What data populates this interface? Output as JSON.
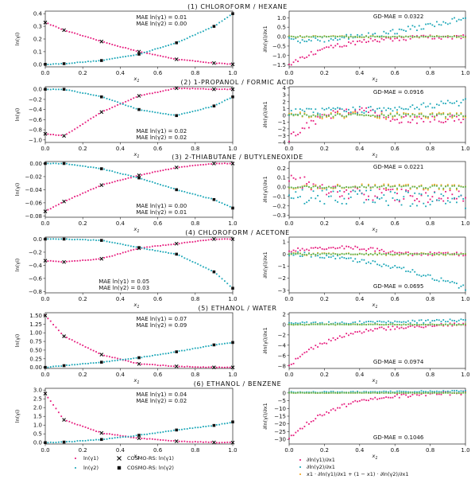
{
  "colors": {
    "pink": "#e6197c",
    "teal": "#1aa6b7",
    "orange": "#f3a31c",
    "green": "#5ab552",
    "marker": "#111111"
  },
  "legend": {
    "left": [
      {
        "label": "ln(γ1)",
        "marker": "pink-dot"
      },
      {
        "label": "ln(γ2)",
        "marker": "teal-dot"
      },
      {
        "label": "COSMO-RS: ln(γ1)",
        "marker": "black-x"
      },
      {
        "label": "COSMO-RS: ln(γ2)",
        "marker": "black-square"
      }
    ],
    "right": [
      {
        "label": "∂ln(γ1)/∂x1",
        "marker": "pink-dot"
      },
      {
        "label": "∂ln(γ2)/∂x1",
        "marker": "teal-dot"
      },
      {
        "label": "x1 · ∂ln(γ1)/∂x1 + (1 − x1) · ∂ln(γ2)/∂x1",
        "marker": "orange-dot"
      }
    ]
  },
  "chart_data": [
    {
      "type": "scatter",
      "title": "(1) CHLOROFORM / HEXANE",
      "xlabel": "x1",
      "ylabel": "ln(γi)",
      "xlim": [
        0,
        1
      ],
      "ylim": [
        -0.02,
        0.42
      ],
      "yticks": [
        0.0,
        0.1,
        0.2,
        0.3,
        0.4
      ],
      "ytick_labels": [
        "0.0",
        "0.1",
        "0.2",
        "0.3",
        "0.4"
      ],
      "xticks": [
        0,
        0.2,
        0.4,
        0.6,
        0.8,
        1.0
      ],
      "xtick_labels": [
        "0.0",
        "0.2",
        "0.4",
        "0.6",
        "0.8",
        "1.0"
      ],
      "ln1": {
        "a": 0.35,
        "b": 0.05,
        "c": -0.02
      },
      "ln2": {
        "a": 0.42,
        "b": -0.02,
        "c": 0
      },
      "cosmo_x": [
        0,
        0.1,
        0.3,
        0.5,
        0.7,
        0.9,
        1.0
      ],
      "cosmo_ln1": [
        0.33,
        0.27,
        0.18,
        0.1,
        0.04,
        0.01,
        0.0
      ],
      "cosmo_ln2": [
        0.0,
        0.005,
        0.03,
        0.08,
        0.17,
        0.3,
        0.4
      ],
      "annotation": [
        "MAE ln(γ1) = 0.01",
        "MAE ln(γ2) = 0.00"
      ],
      "ann_pos": "top",
      "right": {
        "title_ann": "GD-MAE = 0.0322",
        "ann_pos": "top",
        "ylim": [
          -1.6,
          1.35
        ],
        "yticks": [
          -1.5,
          -1.0,
          -0.5,
          0.0,
          0.5,
          1.0
        ],
        "ytick_labels": [
          "−1.5",
          "−1.0",
          "−0.5",
          "0.0",
          "0.5",
          "1.0"
        ],
        "d1": {
          "start": -1.5,
          "end": 0.0,
          "noise": 0.12
        },
        "d2": {
          "start": -0.2,
          "end": 1.0,
          "noise": 0.15
        },
        "gd": {
          "amp": 0.05
        }
      }
    },
    {
      "type": "scatter",
      "title": "(2) 1-PROPANOL / FORMIC ACID",
      "xlabel": "x1",
      "ylabel": "ln(γi)",
      "xlim": [
        0,
        1
      ],
      "ylim": [
        -1.05,
        0.05
      ],
      "yticks": [
        0.0,
        -0.2,
        -0.4,
        -0.6,
        -0.8,
        -1.0
      ],
      "ytick_labels": [
        "0.0",
        "−0.2",
        "−0.4",
        "−0.6",
        "−0.8",
        "−1.0"
      ],
      "xticks": [
        0,
        0.2,
        0.4,
        0.6,
        0.8,
        1.0
      ],
      "xtick_labels": [
        "0.0",
        "0.2",
        "0.4",
        "0.6",
        "0.8",
        "1.0"
      ],
      "ln1": {
        "a": -0.9,
        "b": 0,
        "c": 0
      },
      "ln2": {
        "a": -0.5,
        "b": 0,
        "c": 0
      },
      "cosmo_x": [
        0,
        0.1,
        0.3,
        0.5,
        0.7,
        0.9,
        1.0
      ],
      "cosmo_ln1": [
        -0.88,
        -0.92,
        -0.45,
        -0.13,
        0.02,
        0.0,
        0.0
      ],
      "cosmo_ln2": [
        0.0,
        0.0,
        -0.15,
        -0.4,
        -0.52,
        -0.33,
        -0.15
      ],
      "annotation": [
        "MAE ln(γ1) = 0.02",
        "MAE ln(γ2) = 0.02"
      ],
      "ann_pos": "bottom",
      "right": {
        "title_ann": "GD-MAE = 0.0916",
        "ann_pos": "top",
        "ylim": [
          -4,
          4.2
        ],
        "yticks": [
          -4,
          -3,
          -2,
          -1,
          0,
          1,
          2,
          3,
          4
        ],
        "ytick_labels": [
          "−4",
          "−3",
          "−2",
          "−1",
          "0",
          "1",
          "2",
          "3",
          "4"
        ],
        "d1": {
          "start": -3.5,
          "end": -0.5,
          "noise": 0.6,
          "hump": 3.0
        },
        "d2": {
          "start": 0.5,
          "end": 2.0,
          "noise": 0.5
        },
        "gd": {
          "amp": 0.5
        }
      }
    },
    {
      "type": "scatter",
      "title": "(3) 2-THIABUTANE / BUTYLENEOXIDE",
      "xlabel": "x1",
      "ylabel": "ln(γi)",
      "xlim": [
        0,
        1
      ],
      "ylim": [
        -0.082,
        0.003
      ],
      "yticks": [
        0.0,
        -0.02,
        -0.04,
        -0.06,
        -0.08
      ],
      "ytick_labels": [
        "0.00",
        "−0.02",
        "−0.04",
        "−0.06",
        "−0.08"
      ],
      "xticks": [
        0,
        0.2,
        0.4,
        0.6,
        0.8,
        1.0
      ],
      "xtick_labels": [
        "0.0",
        "0.2",
        "0.4",
        "0.6",
        "0.8",
        "1.0"
      ],
      "ln1": {
        "a": -0.066,
        "b": 0,
        "c": 0
      },
      "ln2": {
        "a": -0.079,
        "b": 0,
        "c": 0
      },
      "cosmo_x": [
        0,
        0.1,
        0.3,
        0.5,
        0.7,
        0.9,
        1.0
      ],
      "cosmo_ln1": [
        -0.073,
        -0.058,
        -0.033,
        -0.018,
        -0.006,
        0.0,
        0.0
      ],
      "cosmo_ln2": [
        0.0,
        0.0,
        -0.008,
        -0.022,
        -0.04,
        -0.055,
        -0.068
      ],
      "annotation": [
        "MAE ln(γ1) = 0.00",
        "MAE ln(γ2) = 0.01"
      ],
      "ann_pos": "bottom",
      "right": {
        "title_ann": "GD-MAE = 0.0221",
        "ann_pos": "top",
        "ylim": [
          -0.32,
          0.27
        ],
        "yticks": [
          -0.3,
          -0.2,
          -0.1,
          0.0,
          0.1,
          0.2
        ],
        "ytick_labels": [
          "−0.3",
          "−0.2",
          "−0.1",
          "0.0",
          "0.1",
          "0.2"
        ],
        "d1": {
          "start": 0.1,
          "end": -0.1,
          "noise": 0.07
        },
        "d2": {
          "start": -0.1,
          "end": -0.15,
          "noise": 0.08
        },
        "gd": {
          "amp": 0.03
        }
      }
    },
    {
      "type": "scatter",
      "title": "(4) CHLOROFORM / ACETONE",
      "xlabel": "x1",
      "ylabel": "ln(γi)",
      "xlim": [
        0,
        1
      ],
      "ylim": [
        -0.82,
        0.03
      ],
      "yticks": [
        0.0,
        -0.2,
        -0.4,
        -0.6,
        -0.8
      ],
      "ytick_labels": [
        "0.0",
        "−0.2",
        "−0.4",
        "−0.6",
        "−0.8"
      ],
      "xticks": [
        0,
        0.2,
        0.4,
        0.6,
        0.8,
        1.0
      ],
      "xtick_labels": [
        "0.0",
        "0.2",
        "0.4",
        "0.6",
        "0.8",
        "1.0"
      ],
      "ln1": {
        "a": -0.5,
        "b": 0,
        "c": 0
      },
      "ln2": {
        "a": -0.78,
        "b": 0,
        "c": 0
      },
      "cosmo_x": [
        0,
        0.1,
        0.3,
        0.5,
        0.7,
        0.9,
        1.0
      ],
      "cosmo_ln1": [
        -0.33,
        -0.35,
        -0.3,
        -0.14,
        -0.07,
        0.0,
        0.0
      ],
      "cosmo_ln2": [
        0.0,
        0.0,
        -0.02,
        -0.13,
        -0.23,
        -0.5,
        -0.75
      ],
      "annotation": [
        "MAE ln(γ1) = 0.05",
        "MAE ln(γ2) = 0.03"
      ],
      "ann_pos": "bottom-center",
      "right": {
        "title_ann": "GD-MAE = 0.0695",
        "ann_pos": "bottom",
        "ylim": [
          -3.2,
          1.4
        ],
        "yticks": [
          -3,
          -2,
          -1,
          0,
          1
        ],
        "ytick_labels": [
          "−3",
          "−2",
          "−1",
          "0",
          "1"
        ],
        "d1": {
          "start": 0.3,
          "end": 0.0,
          "noise": 0.15,
          "hump": 0.8
        },
        "d2": {
          "start": 0.0,
          "end": -2.8,
          "noise": 0.18
        },
        "gd": {
          "amp": 0.1
        }
      }
    },
    {
      "type": "scatter",
      "title": "(5) ETHANOL / WATER",
      "xlabel": "x1",
      "ylabel": "ln(γi)",
      "xlim": [
        0,
        1
      ],
      "ylim": [
        -0.03,
        1.58
      ],
      "yticks": [
        0.0,
        0.25,
        0.5,
        0.75,
        1.0,
        1.25,
        1.5
      ],
      "ytick_labels": [
        "0.00",
        "0.25",
        "0.50",
        "0.75",
        "1.00",
        "1.25",
        "1.50"
      ],
      "xticks": [
        0,
        0.2,
        0.4,
        0.6,
        0.8,
        1.0
      ],
      "xtick_labels": [
        "0.0",
        "0.2",
        "0.4",
        "0.6",
        "0.8",
        "1.0"
      ],
      "ln1": {
        "a": 1.5,
        "b": 0,
        "c": 0
      },
      "ln2": {
        "a": 0.55,
        "b": 0,
        "c": 0
      },
      "cosmo_x": [
        0,
        0.1,
        0.3,
        0.5,
        0.7,
        0.9,
        1.0
      ],
      "cosmo_ln1": [
        1.5,
        0.9,
        0.37,
        0.1,
        0.03,
        0.0,
        0.0
      ],
      "cosmo_ln2": [
        0.0,
        0.05,
        0.15,
        0.28,
        0.45,
        0.65,
        0.72
      ],
      "annotation": [
        "MAE ln(γ1) = 0.07",
        "MAE ln(γ2) = 0.09"
      ],
      "ann_pos": "top",
      "right": {
        "title_ann": "GD-MAE = 0.0974",
        "ann_pos": "bottom",
        "ylim": [
          -8.5,
          2.3
        ],
        "yticks": [
          -8,
          -6,
          -4,
          -2,
          0,
          2
        ],
        "ytick_labels": [
          "−8",
          "−6",
          "−4",
          "−2",
          "0",
          "2"
        ],
        "d1": {
          "start": -8,
          "end": 0,
          "noise": 0.35
        },
        "d2": {
          "start": 0.3,
          "end": 0.8,
          "noise": 0.3
        },
        "gd": {
          "amp": 0.1
        }
      }
    },
    {
      "type": "scatter",
      "title": "(6) ETHANOL / BENZENE",
      "xlabel": "x1",
      "ylabel": "ln(γi)",
      "xlim": [
        0,
        1
      ],
      "ylim": [
        -0.08,
        3.1
      ],
      "yticks": [
        0.0,
        0.5,
        1.0,
        1.5,
        2.0,
        2.5,
        3.0
      ],
      "ytick_labels": [
        "0.0",
        "0.5",
        "1.0",
        "1.5",
        "2.0",
        "2.5",
        "3.0"
      ],
      "xticks": [
        0,
        0.2,
        0.4,
        0.6,
        0.8,
        1.0
      ],
      "xtick_labels": [
        "0.0",
        "0.2",
        "0.4",
        "0.6",
        "0.8",
        "1.0"
      ],
      "ln1": {
        "a": 2.9,
        "b": 0,
        "c": 0
      },
      "ln2": {
        "a": 1.18,
        "b": 0,
        "c": 0
      },
      "cosmo_x": [
        0,
        0.1,
        0.3,
        0.5,
        0.7,
        0.9,
        1.0
      ],
      "cosmo_ln1": [
        2.8,
        1.3,
        0.55,
        0.25,
        0.08,
        0.01,
        0.0
      ],
      "cosmo_ln2": [
        0.0,
        0.03,
        0.18,
        0.42,
        0.72,
        0.98,
        1.18
      ],
      "annotation": [
        "MAE ln(γ1) = 0.04",
        "MAE ln(γ2) = 0.02"
      ],
      "ann_pos": "top",
      "right": {
        "title_ann": "GD-MAE = 0.1046",
        "ann_pos": "bottom",
        "ylim": [
          -33,
          3
        ],
        "yticks": [
          -30,
          -25,
          -20,
          -15,
          -10,
          -5,
          0
        ],
        "ytick_labels": [
          "−30",
          "−25",
          "−20",
          "−15",
          "−10",
          "−5",
          "0"
        ],
        "d1": {
          "start": -30,
          "end": 0,
          "noise": 1.2
        },
        "d2": {
          "start": 0.5,
          "end": 1.2,
          "noise": 0.4
        },
        "gd": {
          "amp": 0.2
        }
      }
    }
  ]
}
